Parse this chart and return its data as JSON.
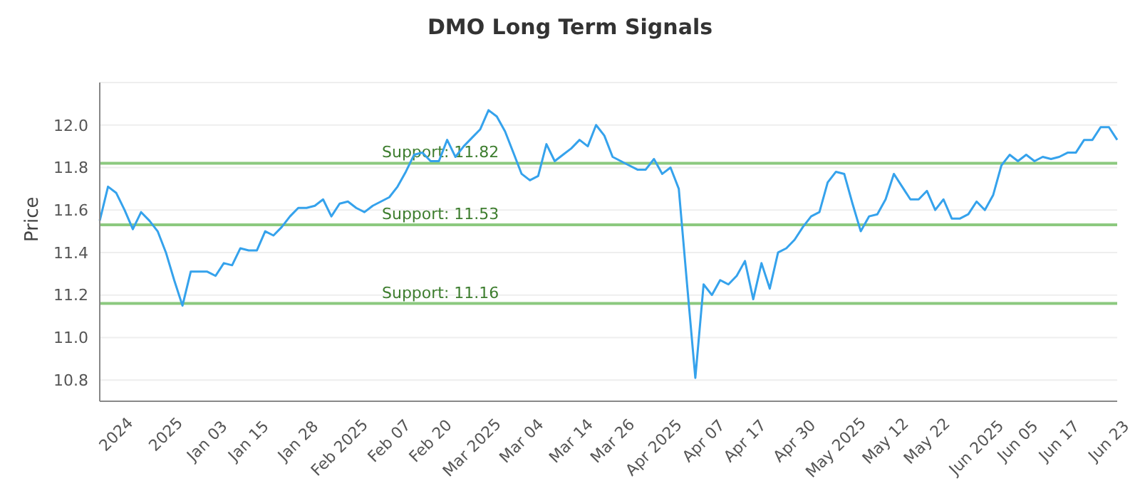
{
  "chart_data": {
    "type": "line",
    "title": "DMO Long Term Signals",
    "ylabel": "Price",
    "categories": [
      null,
      null,
      "2024",
      null,
      null,
      null,
      null,
      null,
      "2025",
      null,
      null,
      null,
      null,
      "Jan 03",
      null,
      null,
      null,
      null,
      "Jan 15",
      null,
      null,
      null,
      null,
      null,
      "Jan 28",
      null,
      null,
      null,
      null,
      "Feb 2025",
      null,
      null,
      null,
      null,
      null,
      "Feb 07",
      null,
      null,
      null,
      null,
      "Feb 20",
      null,
      null,
      null,
      null,
      "Mar 2025",
      null,
      null,
      null,
      null,
      null,
      "Mar 04",
      null,
      null,
      null,
      null,
      null,
      "Mar 14",
      null,
      null,
      null,
      null,
      "Mar 26",
      null,
      null,
      null,
      null,
      "Apr 2025",
      null,
      null,
      null,
      null,
      null,
      "Apr 07",
      null,
      null,
      null,
      null,
      "Apr 17",
      null,
      null,
      null,
      null,
      null,
      "Apr 30",
      null,
      null,
      null,
      null,
      "May 2025",
      null,
      null,
      null,
      null,
      null,
      "May 12",
      null,
      null,
      null,
      null,
      "May 22",
      null,
      null,
      null,
      null,
      null,
      "Jun 2025",
      null,
      null,
      null,
      null,
      "Jun 05",
      null,
      null,
      null,
      null,
      "Jun 17",
      null,
      null,
      null,
      null,
      null,
      "Jun 23",
      null
    ],
    "series": [
      {
        "color": "#35a2ec",
        "values": [
          11.55,
          11.71,
          11.68,
          11.6,
          11.51,
          11.59,
          11.55,
          11.5,
          11.4,
          11.27,
          11.15,
          11.31,
          11.31,
          11.31,
          11.29,
          11.35,
          11.34,
          11.42,
          11.41,
          11.41,
          11.5,
          11.48,
          11.52,
          11.57,
          11.61,
          11.61,
          11.62,
          11.65,
          11.57,
          11.63,
          11.64,
          11.61,
          11.59,
          11.62,
          11.64,
          11.66,
          11.71,
          11.78,
          11.86,
          11.87,
          11.83,
          11.83,
          11.93,
          11.85,
          11.9,
          11.94,
          11.98,
          12.07,
          12.04,
          11.97,
          11.87,
          11.77,
          11.74,
          11.76,
          11.91,
          11.83,
          11.86,
          11.89,
          11.93,
          11.9,
          12.0,
          11.95,
          11.85,
          11.83,
          11.81,
          11.79,
          11.79,
          11.84,
          11.77,
          11.8,
          11.7,
          11.25,
          10.81,
          11.25,
          11.2,
          11.27,
          11.25,
          11.29,
          11.36,
          11.18,
          11.35,
          11.23,
          11.4,
          11.42,
          11.46,
          11.52,
          11.57,
          11.59,
          11.73,
          11.78,
          11.77,
          11.63,
          11.5,
          11.57,
          11.58,
          11.65,
          11.77,
          11.71,
          11.65,
          11.65,
          11.69,
          11.6,
          11.65,
          11.56,
          11.56,
          11.58,
          11.64,
          11.6,
          11.67,
          11.81,
          11.86,
          11.83,
          11.86,
          11.83,
          11.85,
          11.84,
          11.85,
          11.87,
          11.87,
          11.93,
          11.93,
          11.99,
          11.99,
          11.93
        ]
      }
    ],
    "ylim": [
      10.7,
      12.2
    ],
    "yticks": [
      10.8,
      {
        "value": 11.0,
        "label": "11.0"
      },
      11.2,
      11.4,
      11.6,
      11.8,
      {
        "value": 12.0,
        "label": "12.0"
      }
    ],
    "grid": "y",
    "marker": "none",
    "line_style": "solid",
    "ref_lines": [
      {
        "axis": "y",
        "value": 11.82,
        "label": "Support: 11.82",
        "color": "#8cc97f"
      },
      {
        "axis": "y",
        "value": 11.53,
        "label": "Support: 11.53",
        "color": "#8cc97f"
      },
      {
        "axis": "y",
        "value": 11.16,
        "label": "Support: 11.16",
        "color": "#8cc97f"
      }
    ]
  }
}
